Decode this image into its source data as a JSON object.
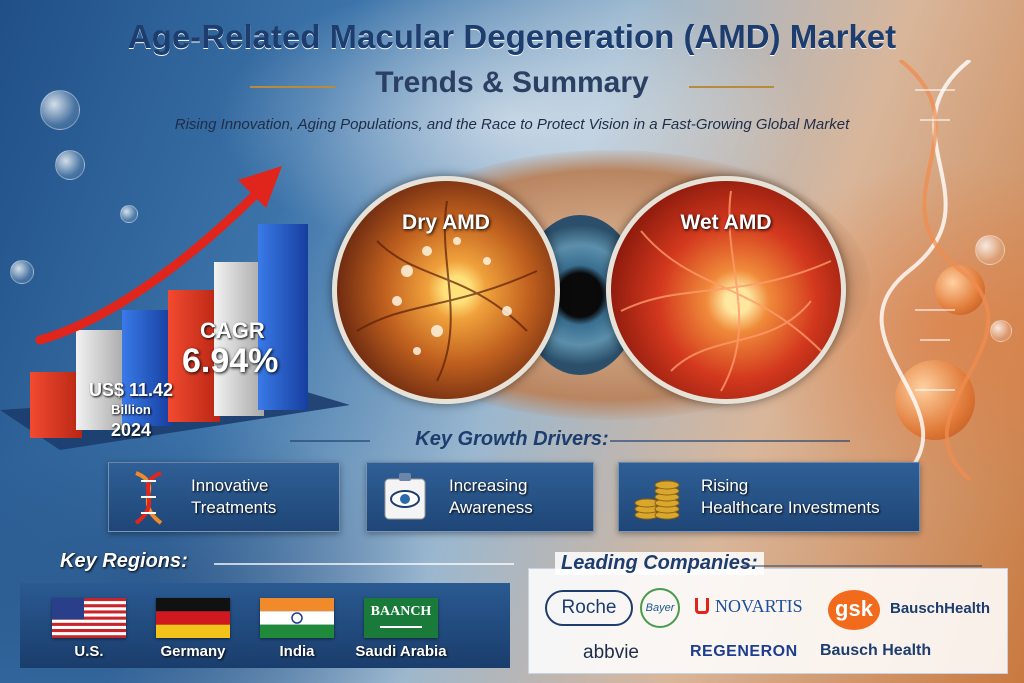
{
  "header": {
    "title": "Age-Related Macular Degeneration (AMD) Market",
    "subtitle": "Trends & Summary",
    "tagline": "Rising Innovation, Aging Populations, and the Race to Protect Vision in a Fast-Growing Global Market"
  },
  "market_stats": {
    "cagr_label": "CAGR",
    "cagr_value": "6.94%",
    "market_size_value": "US$ 11.42",
    "market_size_unit": "Billion",
    "market_size_year": "2024"
  },
  "amd_types": [
    {
      "label": "Dry AMD"
    },
    {
      "label": "Wet AMD"
    }
  ],
  "key_growth_drivers": {
    "heading": "Key Growth Drivers:",
    "items": [
      {
        "label": "Innovative\nTreatments",
        "icon": "dna-icon"
      },
      {
        "label": "Increasing\nAwareness",
        "icon": "eye-chart-icon"
      },
      {
        "label": "Rising\nHealthcare Investments",
        "icon": "coins-icon"
      }
    ]
  },
  "key_regions": {
    "heading": "Key Regions:",
    "items": [
      {
        "name": "U.S.",
        "flag": "us-flag-icon"
      },
      {
        "name": "Germany",
        "flag": "germany-flag-icon"
      },
      {
        "name": "India",
        "flag": "india-flag-icon"
      },
      {
        "name": "Saudi Arabia",
        "flag": "saudi-arabia-flag-icon",
        "flag_text": "BAANCH"
      }
    ]
  },
  "leading_companies": {
    "heading": "Leading Companies:",
    "items": [
      "Roche",
      "Bayer",
      "NOVARTIS",
      "gsk",
      "BauschHealth",
      "abbvie",
      "REGENERON",
      "Bausch Health"
    ]
  },
  "colors": {
    "brand_navy": "#1d3d6e",
    "bar_red": "#d8331f",
    "bar_blue": "#1f55c8",
    "bar_silver": "#d8d8d8",
    "arrow_red": "#e0261c"
  }
}
